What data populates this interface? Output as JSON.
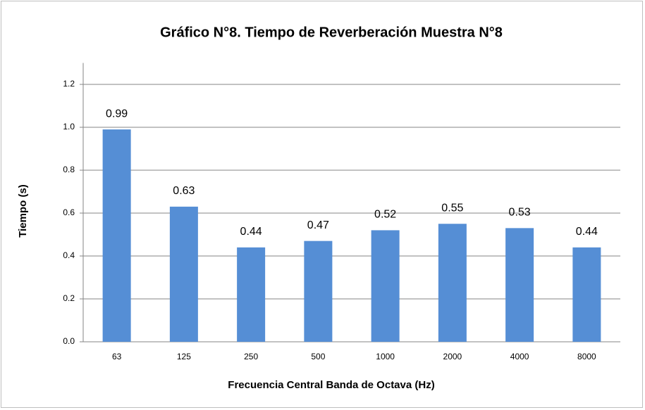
{
  "chart_data": {
    "type": "bar",
    "title": "Gráfico N°8. Tiempo de Reverberación Muestra N°8",
    "x_label": "Frecuencia  Central Banda de Octava (Hz)",
    "y_label": "Tiempo (s)",
    "categories": [
      "63",
      "125",
      "250",
      "500",
      "1000",
      "2000",
      "4000",
      "8000"
    ],
    "values": [
      0.99,
      0.63,
      0.44,
      0.47,
      0.52,
      0.55,
      0.53,
      0.44
    ],
    "color": "#558ed5",
    "ylim": [
      0,
      1.3
    ],
    "yticks": [
      {
        "value": 0,
        "label": "0.0"
      },
      0.2,
      0.4,
      0.6,
      0.8,
      {
        "value": 1,
        "label": "1.0"
      },
      1.2
    ],
    "grid": true,
    "data_labels": true
  }
}
